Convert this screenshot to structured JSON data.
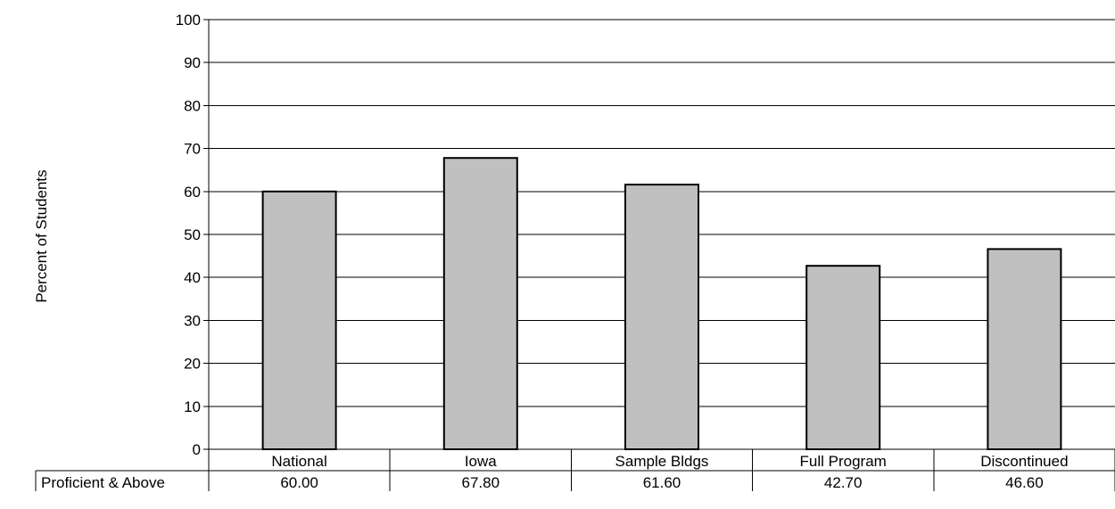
{
  "chart_data": {
    "type": "bar",
    "title": "",
    "xlabel": "",
    "ylabel": "Percent of Students",
    "ylim": [
      0,
      100
    ],
    "yticks": [
      0,
      10,
      20,
      30,
      40,
      50,
      60,
      70,
      80,
      90,
      100
    ],
    "grid": true,
    "legend": "none",
    "categories": [
      "National",
      "Iowa",
      "Sample Bldgs",
      "Full Program",
      "Discontinued"
    ],
    "series": [
      {
        "name": "Proficient & Above",
        "values": [
          60.0,
          67.8,
          61.6,
          42.7,
          46.6
        ],
        "labels": [
          "60.00",
          "67.80",
          "61.60",
          "42.70",
          "46.60"
        ],
        "color": "#c0c0c0"
      }
    ]
  }
}
